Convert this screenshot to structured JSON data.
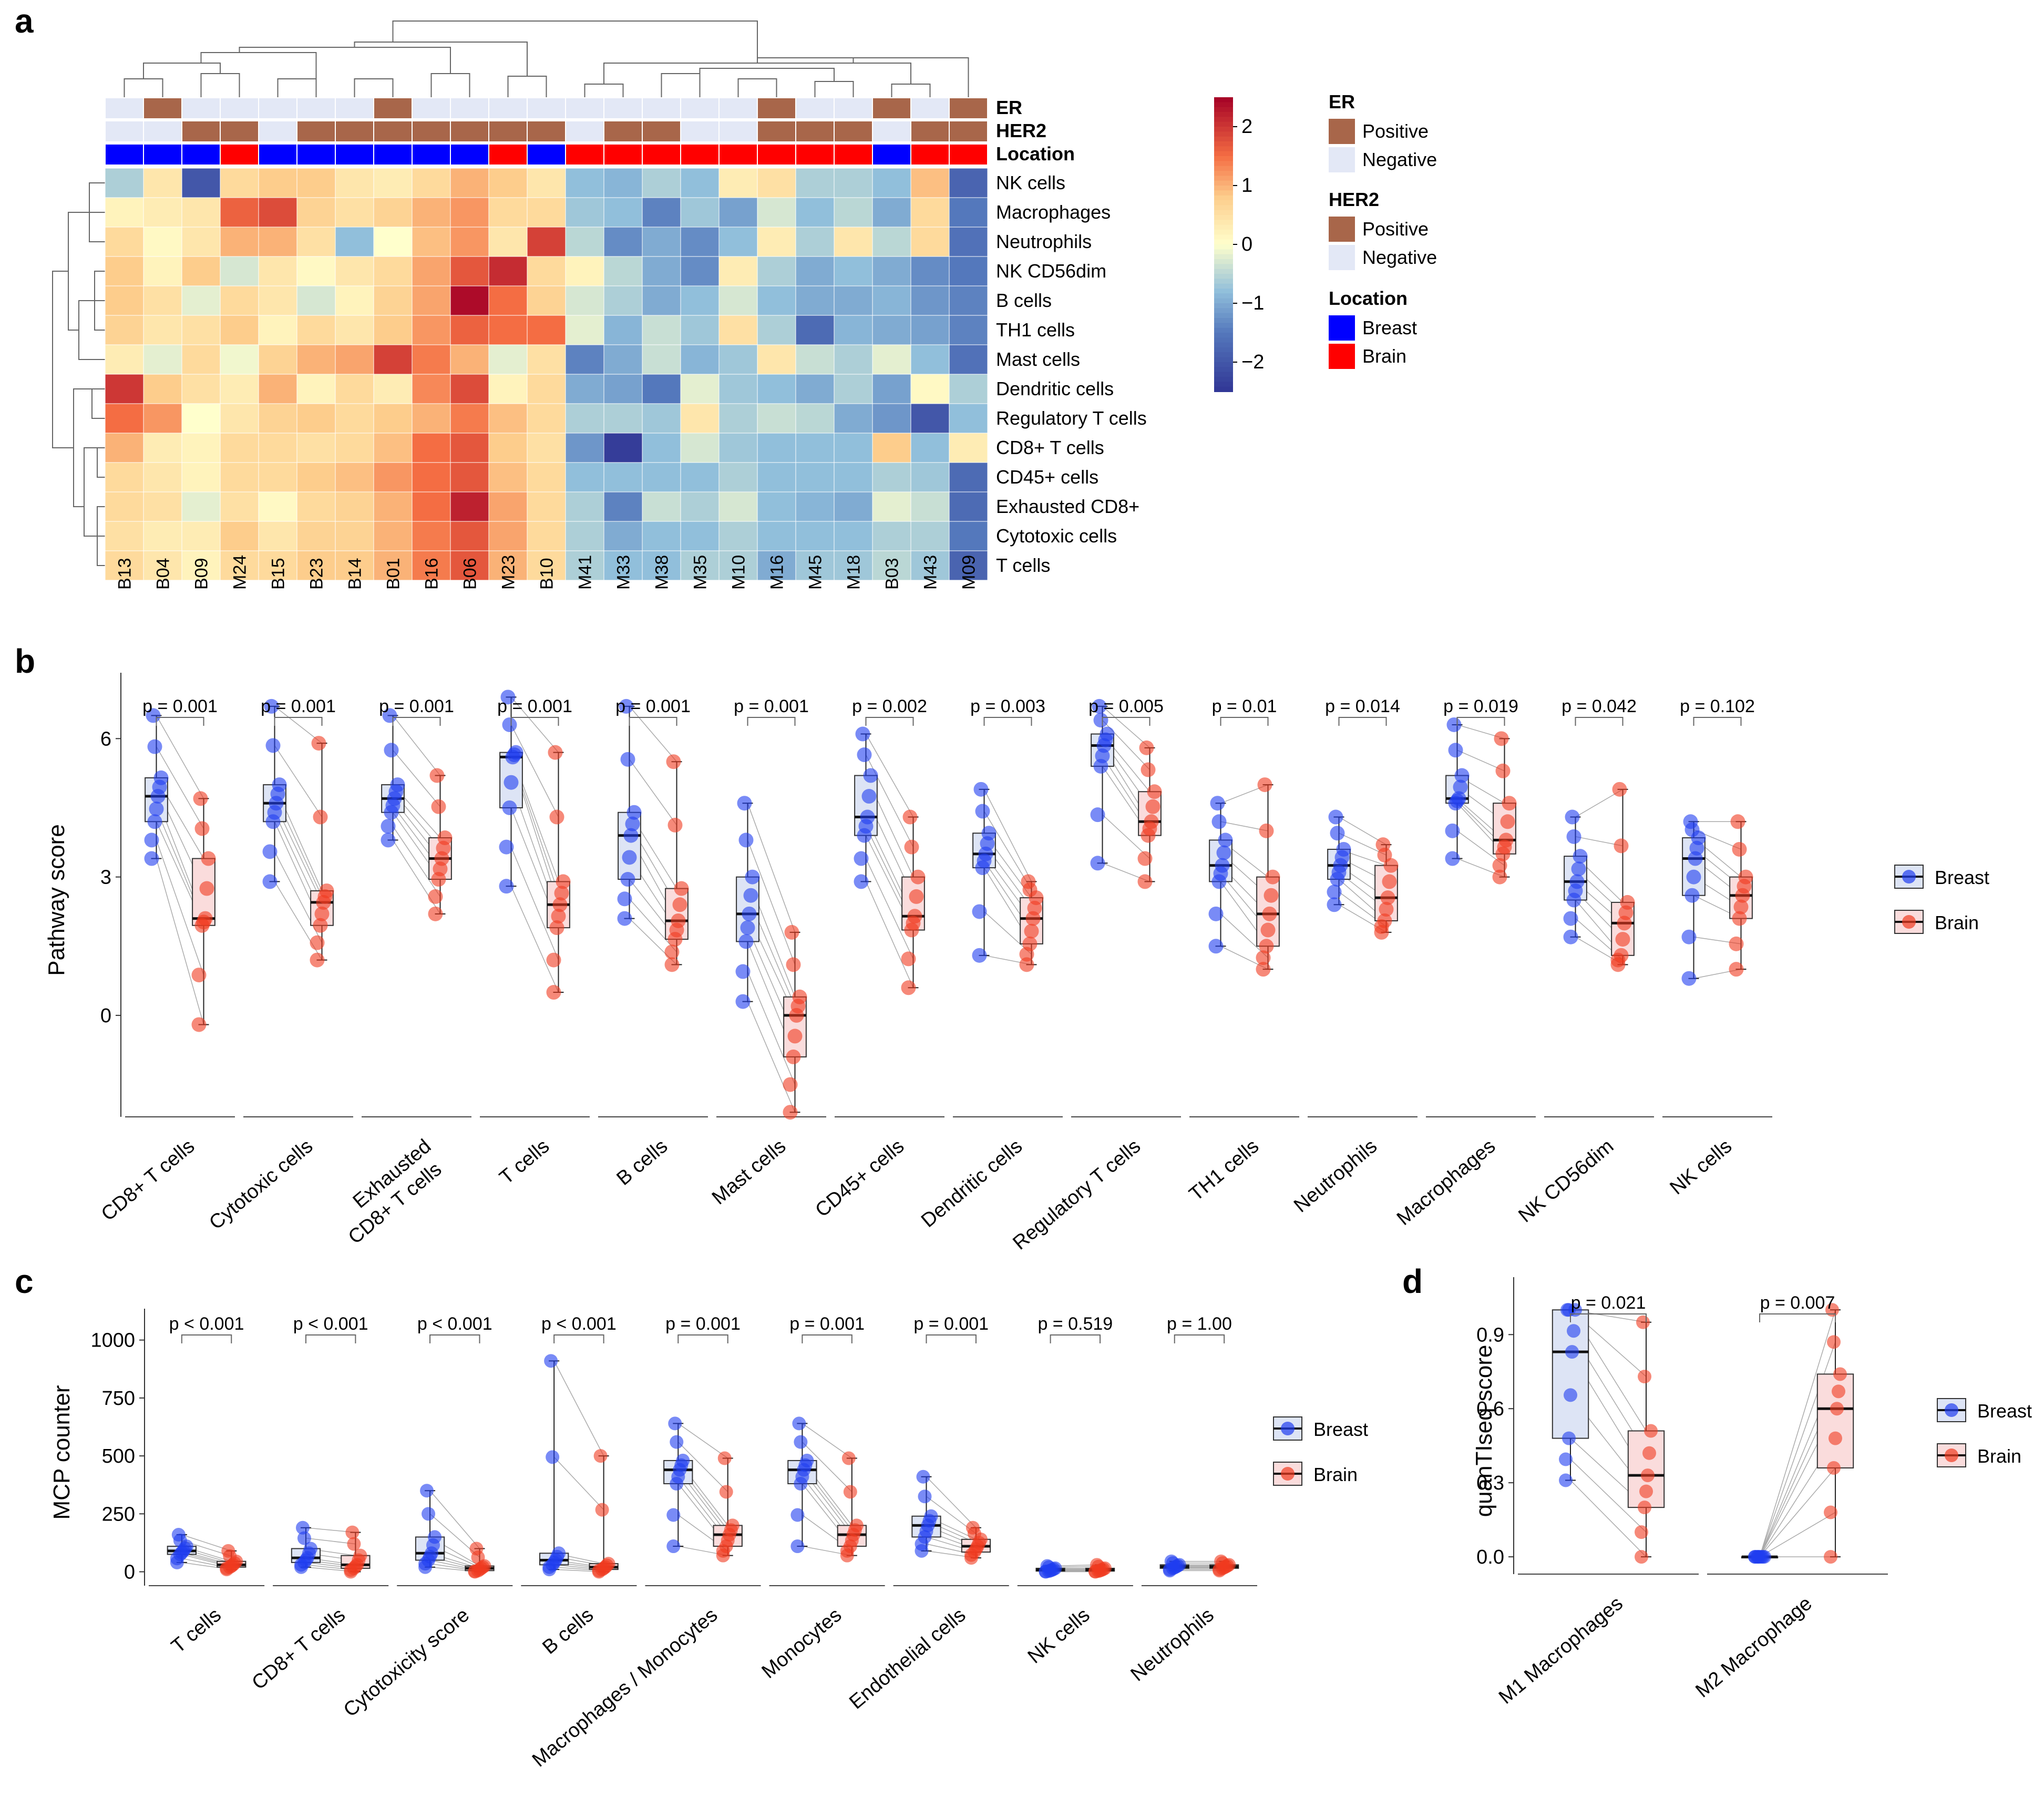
{
  "panels": {
    "a": "a",
    "b": "b",
    "c": "c",
    "d": "d"
  },
  "colors": {
    "breast": "#1f3df0",
    "brain": "#f03a1f",
    "breast_box": "#dde4f5",
    "brain_box": "#fadcdc",
    "positive": "#a8664a",
    "negative": "#e3e8f6",
    "loc_breast": "#0000ff",
    "loc_brain": "#ff0000"
  },
  "heatmap": {
    "annotation_labels": [
      "ER",
      "HER2",
      "Location"
    ],
    "columns": [
      "B13",
      "B04",
      "B09",
      "M24",
      "B15",
      "B23",
      "B14",
      "B01",
      "B16",
      "B06",
      "M23",
      "B10",
      "M41",
      "M33",
      "M38",
      "M35",
      "M10",
      "M16",
      "M45",
      "M18",
      "B03",
      "M43",
      "M09"
    ],
    "rows": [
      "NK cells",
      "Macrophages",
      "Neutrophils",
      "NK CD56dim",
      "B cells",
      "TH1 cells",
      "Mast cells",
      "Dendritic cells",
      "Regulatory T cells",
      "CD8+ T cells",
      "CD45+ cells",
      "Exhausted CD8+",
      "Cytotoxic cells",
      "T cells"
    ],
    "er": [
      "N",
      "P",
      "N",
      "N",
      "N",
      "N",
      "N",
      "P",
      "N",
      "N",
      "N",
      "N",
      "N",
      "N",
      "N",
      "N",
      "N",
      "P",
      "N",
      "N",
      "P",
      "N",
      "P"
    ],
    "her2": [
      "N",
      "N",
      "P",
      "P",
      "N",
      "P",
      "P",
      "P",
      "P",
      "P",
      "P",
      "P",
      "N",
      "P",
      "P",
      "N",
      "N",
      "P",
      "P",
      "P",
      "N",
      "P",
      "P"
    ],
    "location": [
      "B",
      "B",
      "B",
      "M",
      "B",
      "B",
      "B",
      "B",
      "B",
      "B",
      "M",
      "B",
      "M",
      "M",
      "M",
      "M",
      "M",
      "M",
      "M",
      "M",
      "B",
      "M",
      "M"
    ],
    "values": [
      [
        -0.6,
        0.4,
        -2.0,
        0.6,
        0.8,
        0.8,
        0.4,
        0.3,
        0.6,
        1.0,
        0.8,
        0.4,
        -0.8,
        -0.9,
        -0.6,
        -0.8,
        0.3,
        0.5,
        -0.6,
        -0.6,
        -0.8,
        0.9,
        -1.8
      ],
      [
        0.2,
        0.3,
        0.4,
        1.6,
        1.8,
        0.7,
        0.5,
        0.7,
        1.0,
        1.2,
        0.6,
        0.6,
        -0.7,
        -0.8,
        -1.4,
        -0.7,
        -1.1,
        -0.3,
        -0.8,
        -0.5,
        -1.0,
        0.6,
        -1.5
      ],
      [
        0.6,
        0.1,
        0.4,
        1.0,
        1.0,
        0.5,
        -0.8,
        0.0,
        0.9,
        1.2,
        0.4,
        1.9,
        -0.5,
        -1.3,
        -1.0,
        -1.3,
        -0.8,
        0.3,
        -0.6,
        0.4,
        -0.5,
        0.6,
        -1.6
      ],
      [
        0.8,
        0.2,
        0.8,
        -0.3,
        0.4,
        0.1,
        0.4,
        0.6,
        1.1,
        1.7,
        2.1,
        0.6,
        0.2,
        -0.5,
        -1.0,
        -1.3,
        0.3,
        -0.6,
        -1.0,
        -0.8,
        -1.0,
        -1.3,
        -1.5
      ],
      [
        0.8,
        0.5,
        -0.2,
        0.6,
        0.4,
        -0.3,
        0.2,
        0.7,
        1.1,
        2.4,
        1.5,
        0.7,
        -0.3,
        -0.6,
        -1.0,
        -0.8,
        -0.3,
        -0.8,
        -1.0,
        -1.0,
        -0.9,
        -1.2,
        -1.4
      ],
      [
        0.7,
        0.4,
        0.5,
        0.8,
        0.2,
        0.6,
        0.4,
        0.8,
        1.2,
        1.6,
        1.5,
        1.5,
        -0.2,
        -0.9,
        -0.4,
        -0.7,
        0.5,
        -0.6,
        -1.7,
        -0.9,
        -1.0,
        -1.1,
        -1.4
      ],
      [
        0.3,
        -0.2,
        0.6,
        -0.1,
        0.7,
        1.0,
        1.1,
        1.9,
        1.4,
        1.0,
        -0.2,
        0.5,
        -1.4,
        -1.0,
        -0.4,
        -0.9,
        -0.7,
        0.4,
        -0.4,
        -0.6,
        -0.2,
        -0.8,
        -1.6
      ],
      [
        2.0,
        0.8,
        0.5,
        0.3,
        1.0,
        0.2,
        0.6,
        0.3,
        1.3,
        1.8,
        0.2,
        0.6,
        -1.0,
        -1.1,
        -1.5,
        -0.2,
        -0.7,
        -0.8,
        -1.0,
        -0.6,
        -1.1,
        0.1,
        -0.6
      ],
      [
        1.5,
        1.2,
        0.0,
        0.4,
        0.7,
        0.8,
        0.6,
        0.8,
        1.0,
        1.4,
        0.9,
        0.6,
        -0.6,
        -0.6,
        -0.7,
        0.4,
        -0.6,
        -0.4,
        -0.5,
        -1.0,
        -1.2,
        -2.0,
        -0.8
      ],
      [
        1.0,
        0.3,
        0.2,
        0.6,
        0.6,
        0.5,
        0.6,
        0.9,
        1.5,
        1.7,
        0.8,
        0.5,
        -1.2,
        -2.4,
        -0.8,
        -0.3,
        -0.7,
        -0.8,
        -0.8,
        -0.8,
        0.8,
        -0.8,
        0.3
      ],
      [
        0.6,
        0.4,
        0.2,
        0.6,
        0.6,
        0.8,
        0.9,
        1.2,
        1.5,
        1.7,
        0.9,
        0.6,
        -0.8,
        -0.8,
        -0.8,
        -0.8,
        -0.6,
        -0.8,
        -0.8,
        -0.8,
        -0.6,
        -0.7,
        -1.7
      ],
      [
        0.6,
        0.5,
        -0.2,
        0.5,
        0.1,
        0.6,
        0.7,
        1.0,
        1.5,
        2.2,
        1.1,
        0.6,
        -0.6,
        -1.4,
        -0.4,
        -0.6,
        -0.3,
        -0.8,
        -0.9,
        -1.0,
        -0.2,
        -0.4,
        -1.7
      ],
      [
        0.5,
        0.3,
        0.3,
        0.8,
        0.4,
        0.7,
        0.7,
        1.0,
        1.4,
        1.7,
        1.1,
        0.6,
        -0.6,
        -1.0,
        -0.8,
        -0.8,
        -0.6,
        -0.8,
        -0.8,
        -0.8,
        -0.6,
        -0.6,
        -1.5
      ],
      [
        0.6,
        0.4,
        0.2,
        0.6,
        0.6,
        0.8,
        0.8,
        1.0,
        1.4,
        1.7,
        1.0,
        0.6,
        -0.6,
        -0.8,
        -0.8,
        -0.6,
        -0.6,
        -1.0,
        -0.7,
        -0.7,
        -0.5,
        -0.7,
        -1.8
      ]
    ],
    "colorbar": {
      "ticks": [
        "2",
        "1",
        "0",
        "−1",
        "−2"
      ],
      "min": -2.5,
      "max": 2.5
    },
    "legend": {
      "er_title": "ER",
      "her2_title": "HER2",
      "location_title": "Location",
      "positive": "Positive",
      "negative": "Negative",
      "breast": "Breast",
      "brain": "Brain"
    }
  },
  "panel_b": {
    "ylabel": "Pathway score",
    "ylim": [
      -2.2,
      7.2
    ],
    "yticks": [
      "0",
      "3",
      "6"
    ],
    "legend": [
      "Breast",
      "Brain"
    ],
    "groups": [
      {
        "name": "CD8+ T cells",
        "p": "p = 0.001",
        "breast": {
          "min": 3.4,
          "q1": 4.2,
          "med": 4.75,
          "q3": 5.15,
          "max": 6.5
        },
        "brain": {
          "min": -0.2,
          "q1": 1.95,
          "med": 2.1,
          "q3": 3.4,
          "max": 4.7
        }
      },
      {
        "name": "Cytotoxic cells",
        "p": "p = 0.001",
        "breast": {
          "min": 2.9,
          "q1": 4.2,
          "med": 4.6,
          "q3": 5.0,
          "max": 6.7
        },
        "brain": {
          "min": 1.2,
          "q1": 1.95,
          "med": 2.45,
          "q3": 2.7,
          "max": 5.9
        }
      },
      {
        "name": "Exhausted CD8+ T cells",
        "p": "p = 0.001",
        "breast": {
          "min": 3.8,
          "q1": 4.4,
          "med": 4.7,
          "q3": 5.0,
          "max": 6.5
        },
        "brain": {
          "min": 2.2,
          "q1": 2.95,
          "med": 3.4,
          "q3": 3.85,
          "max": 5.2
        }
      },
      {
        "name": "T cells",
        "p": "p = 0.001",
        "breast": {
          "min": 2.8,
          "q1": 4.5,
          "med": 5.6,
          "q3": 5.7,
          "max": 6.9
        },
        "brain": {
          "min": 0.5,
          "q1": 1.9,
          "med": 2.4,
          "q3": 2.9,
          "max": 5.7
        }
      },
      {
        "name": "B cells",
        "p": "p = 0.001",
        "breast": {
          "min": 2.1,
          "q1": 2.95,
          "med": 3.9,
          "q3": 4.4,
          "max": 6.7
        },
        "brain": {
          "min": 1.1,
          "q1": 1.65,
          "med": 2.05,
          "q3": 2.75,
          "max": 5.5
        }
      },
      {
        "name": "Mast cells",
        "p": "p = 0.001",
        "breast": {
          "min": 0.3,
          "q1": 1.6,
          "med": 2.2,
          "q3": 3.0,
          "max": 4.6
        },
        "brain": {
          "min": -2.1,
          "q1": -0.9,
          "med": 0.0,
          "q3": 0.4,
          "max": 1.8
        }
      },
      {
        "name": "CD45+ cells",
        "p": "p = 0.002",
        "breast": {
          "min": 2.9,
          "q1": 3.9,
          "med": 4.3,
          "q3": 5.2,
          "max": 6.1
        },
        "brain": {
          "min": 0.6,
          "q1": 1.85,
          "med": 2.15,
          "q3": 3.0,
          "max": 4.3
        }
      },
      {
        "name": "Dendritic cells",
        "p": "p = 0.003",
        "breast": {
          "min": 1.3,
          "q1": 3.2,
          "med": 3.5,
          "q3": 3.95,
          "max": 4.9
        },
        "brain": {
          "min": 1.1,
          "q1": 1.55,
          "med": 2.1,
          "q3": 2.55,
          "max": 2.9
        }
      },
      {
        "name": "Regulatory T cells",
        "p": "p = 0.005",
        "breast": {
          "min": 3.3,
          "q1": 5.4,
          "med": 5.85,
          "q3": 6.1,
          "max": 6.7
        },
        "brain": {
          "min": 2.9,
          "q1": 3.9,
          "med": 4.2,
          "q3": 4.85,
          "max": 5.8
        }
      },
      {
        "name": "TH1 cells",
        "p": "p = 0.01",
        "breast": {
          "min": 1.5,
          "q1": 2.9,
          "med": 3.25,
          "q3": 3.8,
          "max": 4.6
        },
        "brain": {
          "min": 1.0,
          "q1": 1.5,
          "med": 2.2,
          "q3": 3.0,
          "max": 5.0
        }
      },
      {
        "name": "Neutrophils",
        "p": "p = 0.014",
        "breast": {
          "min": 2.4,
          "q1": 2.95,
          "med": 3.25,
          "q3": 3.6,
          "max": 4.3
        },
        "brain": {
          "min": 1.8,
          "q1": 2.05,
          "med": 2.55,
          "q3": 3.25,
          "max": 3.7
        }
      },
      {
        "name": "Macrophages",
        "p": "p = 0.019",
        "breast": {
          "min": 3.4,
          "q1": 4.6,
          "med": 4.7,
          "q3": 5.2,
          "max": 6.3
        },
        "brain": {
          "min": 3.0,
          "q1": 3.5,
          "med": 3.8,
          "q3": 4.6,
          "max": 6.0
        }
      },
      {
        "name": "NK CD56dim",
        "p": "p = 0.042",
        "breast": {
          "min": 1.7,
          "q1": 2.5,
          "med": 2.9,
          "q3": 3.45,
          "max": 4.3
        },
        "brain": {
          "min": 1.1,
          "q1": 1.3,
          "med": 2.0,
          "q3": 2.45,
          "max": 4.9
        }
      },
      {
        "name": "NK cells",
        "p": "p = 0.102",
        "breast": {
          "min": 0.8,
          "q1": 2.6,
          "med": 3.4,
          "q3": 3.85,
          "max": 4.2
        },
        "brain": {
          "min": 1.0,
          "q1": 2.1,
          "med": 2.6,
          "q3": 3.0,
          "max": 4.2
        }
      }
    ]
  },
  "panel_c": {
    "ylabel": "MCP counter",
    "ylim": [
      -60,
      1090
    ],
    "yticks": [
      "0",
      "250",
      "500",
      "750",
      "1000"
    ],
    "legend": [
      "Breast",
      "Brain"
    ],
    "groups": [
      {
        "name": "T cells",
        "p": "p < 0.001",
        "breast": {
          "min": 40,
          "q1": 75,
          "med": 90,
          "q3": 110,
          "max": 160
        },
        "brain": {
          "min": 10,
          "q1": 20,
          "med": 30,
          "q3": 45,
          "max": 90
        }
      },
      {
        "name": "CD8+ T cells",
        "p": "p < 0.001",
        "breast": {
          "min": 20,
          "q1": 40,
          "med": 60,
          "q3": 100,
          "max": 190
        },
        "brain": {
          "min": 0,
          "q1": 15,
          "med": 30,
          "q3": 70,
          "max": 170
        }
      },
      {
        "name": "Cytotoxicity score",
        "p": "p < 0.001",
        "breast": {
          "min": 20,
          "q1": 50,
          "med": 80,
          "q3": 150,
          "max": 350
        },
        "brain": {
          "min": 0,
          "q1": 5,
          "med": 15,
          "q3": 25,
          "max": 100
        }
      },
      {
        "name": "B cells",
        "p": "p < 0.001",
        "breast": {
          "min": 10,
          "q1": 30,
          "med": 50,
          "q3": 80,
          "max": 910
        },
        "brain": {
          "min": 0,
          "q1": 10,
          "med": 20,
          "q3": 35,
          "max": 500
        }
      },
      {
        "name": "Macrophages / Monocytes",
        "p": "p = 0.001",
        "breast": {
          "min": 110,
          "q1": 380,
          "med": 440,
          "q3": 480,
          "max": 640
        },
        "brain": {
          "min": 70,
          "q1": 110,
          "med": 160,
          "q3": 200,
          "max": 490
        }
      },
      {
        "name": "Monocytes",
        "p": "p = 0.001",
        "breast": {
          "min": 110,
          "q1": 380,
          "med": 440,
          "q3": 480,
          "max": 640
        },
        "brain": {
          "min": 70,
          "q1": 110,
          "med": 160,
          "q3": 200,
          "max": 490
        }
      },
      {
        "name": "Endothelial cells",
        "p": "p = 0.001",
        "breast": {
          "min": 90,
          "q1": 150,
          "med": 200,
          "q3": 240,
          "max": 410
        },
        "brain": {
          "min": 60,
          "q1": 85,
          "med": 110,
          "q3": 140,
          "max": 190
        }
      },
      {
        "name": "NK cells",
        "p": "p = 0.519",
        "breast": {
          "min": 0,
          "q1": 3,
          "med": 8,
          "q3": 15,
          "max": 25
        },
        "brain": {
          "min": 0,
          "q1": 3,
          "med": 8,
          "q3": 15,
          "max": 30
        }
      },
      {
        "name": "Neutrophils",
        "p": "p = 1.00",
        "breast": {
          "min": 5,
          "q1": 15,
          "med": 22,
          "q3": 30,
          "max": 45
        },
        "brain": {
          "min": 5,
          "q1": 15,
          "med": 22,
          "q3": 30,
          "max": 45
        }
      }
    ]
  },
  "panel_d": {
    "ylabel": "quanTIseq score",
    "ylim": [
      -0.07,
      1.09
    ],
    "yticks": [
      "0.0",
      "0.3",
      "0.6",
      "0.9"
    ],
    "legend": [
      "Breast",
      "Brain"
    ],
    "groups": [
      {
        "name": "M1 Macrophages",
        "p": "p = 0.021",
        "breast": {
          "min": 0.31,
          "q1": 0.48,
          "med": 0.83,
          "q3": 1.0,
          "max": 1.0
        },
        "brain": {
          "min": 0.0,
          "q1": 0.2,
          "med": 0.33,
          "q3": 0.51,
          "max": 0.95
        }
      },
      {
        "name": "M2 Macrophage",
        "p": "p = 0.007",
        "breast": {
          "min": 0.0,
          "q1": 0.0,
          "med": 0.0,
          "q3": 0.0,
          "max": 0.0
        },
        "brain": {
          "min": 0.0,
          "q1": 0.36,
          "med": 0.6,
          "q3": 0.74,
          "max": 1.0
        }
      }
    ]
  },
  "chart_data": [
    {
      "type": "heatmap",
      "title": "",
      "xlabel": "",
      "ylabel": "",
      "ref": "heatmap"
    },
    {
      "type": "box",
      "ref": "panel_b",
      "ylabel": "Pathway score"
    },
    {
      "type": "box",
      "ref": "panel_c",
      "ylabel": "MCP counter"
    },
    {
      "type": "box",
      "ref": "panel_d",
      "ylabel": "quanTIseq score"
    }
  ]
}
